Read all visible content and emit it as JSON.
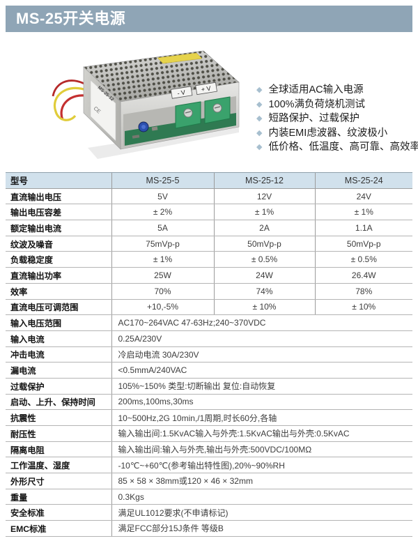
{
  "header": {
    "title": "MS-25开关电源"
  },
  "features": [
    "全球适用AC输入电源",
    "100%满负荷烧机测试",
    "短路保护、过载保护",
    "内装EMI虑波器、纹波极小",
    "低价格、低温度、高可靠、高效率"
  ],
  "product_photo": {
    "neg_label": "- V",
    "pos_label": "+ V",
    "model_label": "MS-25-12",
    "ce_mark": "CE"
  },
  "table": {
    "header": [
      "型号",
      "MS-25-5",
      "MS-25-12",
      "MS-25-24"
    ],
    "rows": [
      {
        "label": "直流输出电压",
        "values": [
          "5V",
          "12V",
          "24V"
        ]
      },
      {
        "label": "输出电压容差",
        "values": [
          "± 2%",
          "± 1%",
          "± 1%"
        ]
      },
      {
        "label": "额定输出电流",
        "values": [
          "5A",
          "2A",
          "1.1A"
        ]
      },
      {
        "label": "纹波及噪音",
        "values": [
          "75mVp-p",
          "50mVp-p",
          "50mVp-p"
        ]
      },
      {
        "label": "负载稳定度",
        "values": [
          "± 1%",
          "± 0.5%",
          "± 0.5%"
        ]
      },
      {
        "label": "直流输出功率",
        "values": [
          "25W",
          "24W",
          "26.4W"
        ]
      },
      {
        "label": "效率",
        "values": [
          "70%",
          "74%",
          "78%"
        ]
      },
      {
        "label": "直流电压可调范围",
        "values": [
          "+10,-5%",
          "± 10%",
          "± 10%"
        ]
      },
      {
        "label": "输入电压范围",
        "span": "AC170~264VAC 47-63Hz;240~370VDC"
      },
      {
        "label": "输入电流",
        "span": "0.25A/230V"
      },
      {
        "label": "冲击电流",
        "span": "冷启动电流 30A/230V"
      },
      {
        "label": "漏电流",
        "span": "<0.5mmA/240VAC"
      },
      {
        "label": "过载保护",
        "span": "105%~150% 类型:切断输出 复位:自动恢复"
      },
      {
        "label": "启动、上升、保持时间",
        "span": "200ms,100ms,30ms"
      },
      {
        "label": "抗震性",
        "span": "10~500Hz,2G 10min,/1周期,时长60分,各轴"
      },
      {
        "label": "耐压性",
        "span": "输入输出间:1.5KvAC输入与外壳:1.5KvAC输出与外壳:0.5KvAC"
      },
      {
        "label": "隔离电阻",
        "span": "输入输出间:输入与外壳,输出与外壳:500VDC/100MΩ"
      },
      {
        "label": "工作温度、湿度",
        "span": "-10℃~+60℃(参考输出特性图),20%~90%RH"
      },
      {
        "label": "外形尺寸",
        "span": "85 × 58 × 38mm或120 × 46 × 32mm"
      },
      {
        "label": "重量",
        "span": "0.3Kgs"
      },
      {
        "label": "安全标准",
        "span": "满足UL1012要求(不申请标记)"
      },
      {
        "label": "EMC标准",
        "span": "满足FCC部分15J条件 等级B"
      }
    ]
  },
  "colors": {
    "banner_bg": "#8FA5B6",
    "table_header_bg": "#D1E1EC",
    "diamond_bullet": "#A7BFCF",
    "row_line": "#B4B4B4",
    "column_line": "#9B9B9B"
  }
}
